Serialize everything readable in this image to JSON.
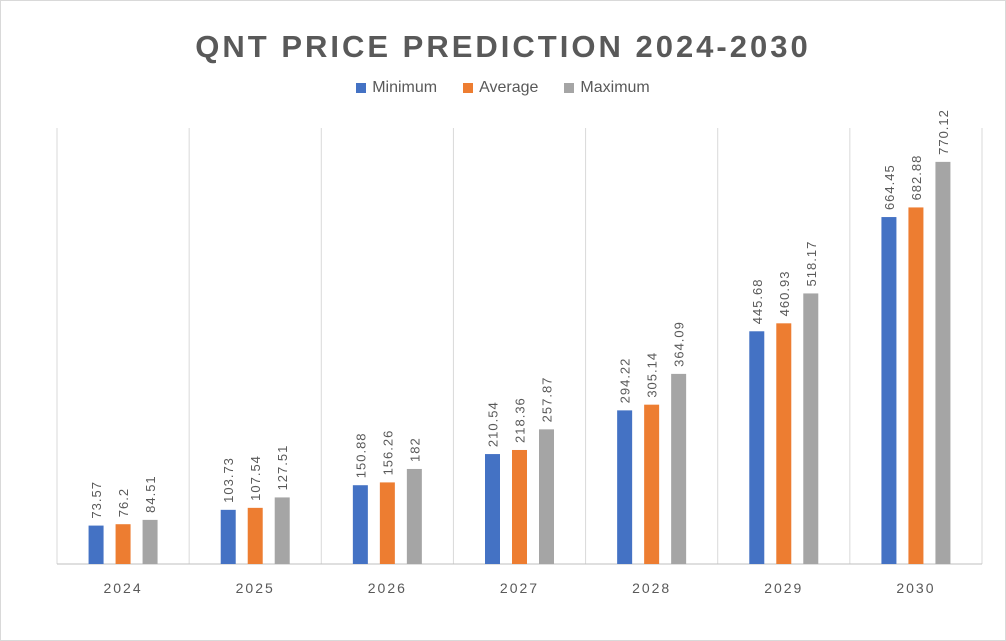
{
  "chart_data": {
    "type": "bar",
    "title": "QNT PRICE PREDICTION 2024-2030",
    "categories": [
      "2024",
      "2025",
      "2026",
      "2027",
      "2028",
      "2029",
      "2030"
    ],
    "series": [
      {
        "name": "Minimum",
        "color": "#4472c4",
        "values": [
          73.57,
          103.73,
          150.88,
          210.54,
          294.22,
          445.68,
          664.45
        ],
        "labels": [
          "73.57",
          "103.73",
          "150.88",
          "210.54",
          "294.22",
          "445.68",
          "664.45"
        ]
      },
      {
        "name": "Average",
        "color": "#ed7d31",
        "values": [
          76.2,
          107.54,
          156.26,
          218.36,
          305.14,
          460.93,
          682.88
        ],
        "labels": [
          "76.2",
          "107.54",
          "156.26",
          "218.36",
          "305.14",
          "460.93",
          "682.88"
        ]
      },
      {
        "name": "Maximum",
        "color": "#a5a5a5",
        "values": [
          84.51,
          127.51,
          182,
          257.87,
          364.09,
          518.17,
          770.12
        ],
        "labels": [
          "84.51",
          "127.51",
          "182",
          "257.87",
          "364.09",
          "518.17",
          "770.12"
        ]
      }
    ],
    "ylim": [
      0,
      835
    ],
    "grid": "vertical category separators",
    "legend_position": "top"
  }
}
